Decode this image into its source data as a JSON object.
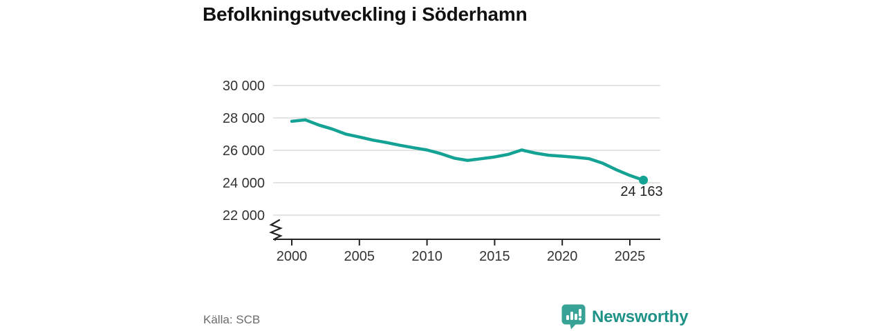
{
  "title": "Befolkningsutveckling i Söderhamn",
  "footer": {
    "source": "Källa: SCB",
    "brand": "Newsworthy",
    "brand_icon": "bar-chart-speech-bubble-icon"
  },
  "colors": {
    "line": "#14a294",
    "point": "#14a294",
    "grid": "#dcdcdc",
    "axis": "#222222",
    "tick_text": "#333333",
    "title_text": "#111111",
    "label_text": "#222222",
    "source_text": "#6b6b6b",
    "brand_teal": "#1f9287",
    "logo_teal": "#39a296"
  },
  "chart_data": {
    "type": "line",
    "title": "Befolkningsutveckling i Söderhamn",
    "xlabel": "",
    "ylabel": "",
    "x": [
      2000,
      2001,
      2002,
      2003,
      2004,
      2005,
      2006,
      2007,
      2008,
      2009,
      2010,
      2011,
      2012,
      2013,
      2014,
      2015,
      2016,
      2017,
      2018,
      2019,
      2020,
      2021,
      2022,
      2023,
      2024,
      2025,
      2026
    ],
    "values": [
      27790,
      27880,
      27560,
      27310,
      27000,
      26820,
      26630,
      26480,
      26310,
      26160,
      26020,
      25800,
      25520,
      25380,
      25480,
      25590,
      25750,
      26020,
      25830,
      25700,
      25640,
      25570,
      25480,
      25200,
      24800,
      24450,
      24163
    ],
    "end_label": "24 163",
    "last_value": 24163,
    "ytick_values": [
      30000,
      28000,
      26000,
      24000,
      22000
    ],
    "ytick_labels": [
      "30 000",
      "28 000",
      "26 000",
      "24 000",
      "22 000"
    ],
    "xtick_values": [
      2000,
      2005,
      2010,
      2015,
      2020,
      2025
    ],
    "xtick_labels": [
      "2000",
      "2005",
      "2010",
      "2015",
      "2020",
      "2025"
    ],
    "ylim": [
      21500,
      30500
    ],
    "xlim": [
      2000,
      2027
    ],
    "axis_break": true,
    "grid": "horizontal-only",
    "legend": "none"
  }
}
